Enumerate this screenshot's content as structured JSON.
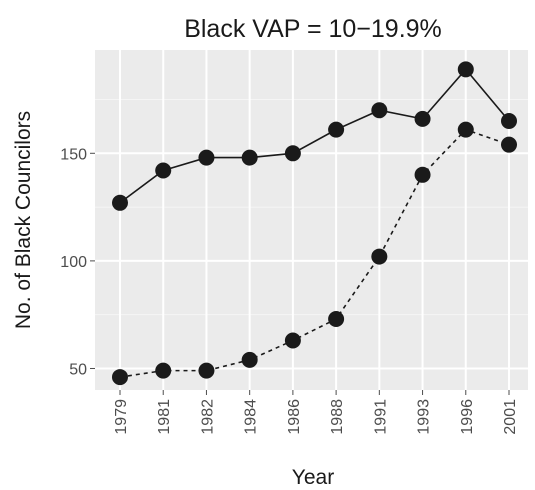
{
  "chart_data": {
    "type": "line",
    "title": "Black VAP = 10−19.9%",
    "xlabel": "Year",
    "ylabel": "No. of Black Councilors",
    "categories": [
      "1979",
      "1981",
      "1982",
      "1984",
      "1986",
      "1988",
      "1991",
      "1993",
      "1996",
      "2001"
    ],
    "yticks": [
      "50",
      "100",
      "150"
    ],
    "ylim": [
      40,
      198
    ],
    "grid": true,
    "series": [
      {
        "style": "solid",
        "values": [
          127,
          142,
          148,
          148,
          150,
          161,
          170,
          166,
          189,
          165
        ]
      },
      {
        "style": "dashed",
        "values": [
          46,
          49,
          49,
          54,
          63,
          73,
          102,
          140,
          161,
          154
        ]
      }
    ]
  },
  "colors": {
    "panel": "#ebebeb",
    "grid_major": "#ffffff",
    "grid_minor": "#f5f5f5",
    "series": "#1a1a1a"
  }
}
